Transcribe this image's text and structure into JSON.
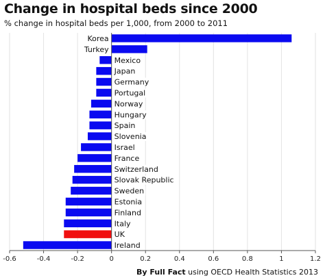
{
  "header": {
    "title": "Change in hospital beds since 2000",
    "subtitle": "% change in hospital beds per 1,000, from 2000 to 2011"
  },
  "footer": {
    "source_bold": "By Full Fact",
    "source_rest": " using OECD Health Statistics 2013"
  },
  "colors": {
    "bar": "#0a0af0",
    "highlight": "#f01010",
    "axis": "#555555",
    "grid": "#e2e2e2"
  },
  "chart_data": {
    "type": "bar",
    "orientation": "horizontal",
    "title": "Change in hospital beds since 2000",
    "subtitle": "% change in hospital beds per 1,000, from 2000 to 2011",
    "xlabel": "",
    "ylabel": "",
    "xlim": [
      -0.6,
      1.2
    ],
    "xticks": [
      "-0.6",
      "-0.4",
      "-0.2",
      "0",
      "0.2",
      "0.4",
      "0.6",
      "0.8",
      "1",
      "1.2"
    ],
    "grid": true,
    "legend": "none",
    "highlight": "UK",
    "categories": [
      "Korea",
      "Turkey",
      "Mexico",
      "Japan",
      "Germany",
      "Portugal",
      "Norway",
      "Hungary",
      "Spain",
      "Slovenia",
      "Israel",
      "France",
      "Switzerland",
      "Slovak Republic",
      "Sweden",
      "Estonia",
      "Finland",
      "Italy",
      "UK",
      "Ireland"
    ],
    "values": [
      1.06,
      0.21,
      -0.07,
      -0.09,
      -0.09,
      -0.09,
      -0.12,
      -0.13,
      -0.13,
      -0.14,
      -0.18,
      -0.2,
      -0.22,
      -0.23,
      -0.24,
      -0.27,
      -0.27,
      -0.28,
      -0.28,
      -0.52
    ]
  }
}
